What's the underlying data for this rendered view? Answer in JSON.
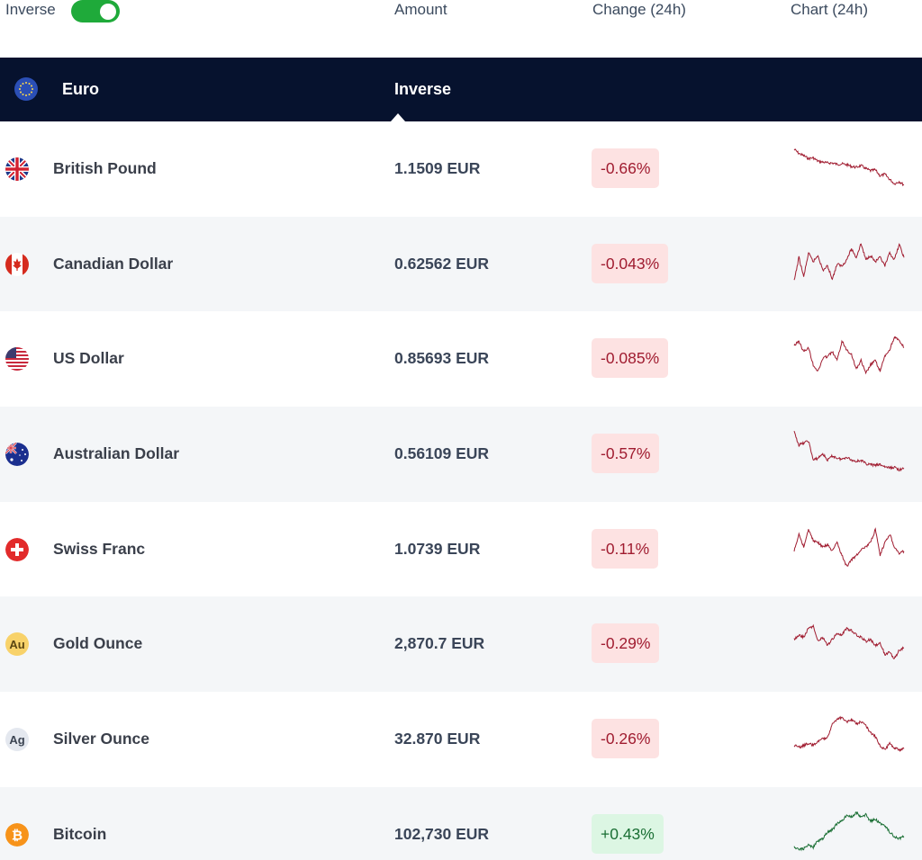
{
  "header": {
    "inverse_label": "Inverse",
    "inverse_toggle_on": true,
    "col_amount": "Amount",
    "col_change": "Change (24h)",
    "col_chart": "Chart (24h)"
  },
  "base": {
    "currency": "Euro",
    "mode": "Inverse"
  },
  "colors": {
    "navy": "#06122e",
    "toggle_green": "#1faa3a",
    "neg_bg": "#fde2e2",
    "neg_text": "#a01c30",
    "pos_bg": "#dcf6e3",
    "pos_text": "#1a6f34",
    "row_alt": "#f4f6f8"
  },
  "rows": [
    {
      "name": "British Pound",
      "icon": "uk-flag-icon",
      "amount": "1.1509 EUR",
      "change": "-0.66%",
      "direction": "down",
      "spark": [
        0.1,
        0.2,
        0.25,
        0.32,
        0.3,
        0.38,
        0.4,
        0.42,
        0.42,
        0.45,
        0.44,
        0.46,
        0.5,
        0.52,
        0.48,
        0.55,
        0.6,
        0.58,
        0.72,
        0.68,
        0.8,
        0.9,
        0.85,
        0.93
      ]
    },
    {
      "name": "Canadian Dollar",
      "icon": "canada-flag-icon",
      "amount": "0.62562 EUR",
      "change": "-0.043%",
      "direction": "down",
      "spark": [
        0.95,
        0.4,
        0.85,
        0.3,
        0.5,
        0.35,
        0.7,
        0.6,
        0.9,
        0.55,
        0.6,
        0.45,
        0.2,
        0.4,
        0.08,
        0.45,
        0.35,
        0.5,
        0.4,
        0.6,
        0.3,
        0.45,
        0.1,
        0.4
      ]
    },
    {
      "name": "US Dollar",
      "icon": "us-flag-icon",
      "amount": "0.85693 EUR",
      "change": "-0.085%",
      "direction": "down",
      "spark": [
        0.25,
        0.15,
        0.4,
        0.3,
        0.7,
        0.85,
        0.55,
        0.5,
        0.4,
        0.6,
        0.15,
        0.35,
        0.45,
        0.8,
        0.6,
        0.9,
        0.7,
        0.6,
        0.85,
        0.5,
        0.35,
        0.05,
        0.15,
        0.3
      ]
    },
    {
      "name": "Australian Dollar",
      "icon": "australia-flag-icon",
      "amount": "0.56109 EUR",
      "change": "-0.57%",
      "direction": "down",
      "spark": [
        0.05,
        0.35,
        0.3,
        0.25,
        0.7,
        0.65,
        0.55,
        0.7,
        0.6,
        0.65,
        0.68,
        0.62,
        0.7,
        0.72,
        0.7,
        0.78,
        0.8,
        0.82,
        0.8,
        0.85,
        0.88,
        0.86,
        0.92,
        0.9
      ]
    },
    {
      "name": "Swiss Franc",
      "icon": "swiss-flag-icon",
      "amount": "1.0739 EUR",
      "change": "-0.11%",
      "direction": "down",
      "spark": [
        0.6,
        0.2,
        0.5,
        0.1,
        0.35,
        0.4,
        0.5,
        0.45,
        0.6,
        0.4,
        0.7,
        0.95,
        0.8,
        0.7,
        0.55,
        0.5,
        0.4,
        0.1,
        0.7,
        0.4,
        0.2,
        0.5,
        0.65,
        0.6
      ]
    },
    {
      "name": "Gold Ounce",
      "icon": "gold-ounce-icon",
      "amount": "2,870.7 EUR",
      "change": "-0.29%",
      "direction": "down",
      "spark": [
        0.45,
        0.35,
        0.4,
        0.2,
        0.15,
        0.5,
        0.4,
        0.6,
        0.45,
        0.3,
        0.35,
        0.2,
        0.25,
        0.35,
        0.4,
        0.5,
        0.45,
        0.6,
        0.55,
        0.8,
        0.75,
        0.9,
        0.7,
        0.65
      ]
    },
    {
      "name": "Silver Ounce",
      "icon": "silver-ounce-icon",
      "amount": "32.870 EUR",
      "change": "-0.26%",
      "direction": "down",
      "spark": [
        0.7,
        0.75,
        0.7,
        0.65,
        0.7,
        0.6,
        0.55,
        0.5,
        0.2,
        0.1,
        0.05,
        0.15,
        0.1,
        0.2,
        0.15,
        0.25,
        0.4,
        0.5,
        0.7,
        0.8,
        0.65,
        0.75,
        0.8,
        0.78
      ]
    },
    {
      "name": "Bitcoin",
      "icon": "bitcoin-icon",
      "amount": "102,730 EUR",
      "change": "+0.43%",
      "direction": "up",
      "spark": [
        0.85,
        0.9,
        0.88,
        0.8,
        0.85,
        0.7,
        0.65,
        0.5,
        0.45,
        0.3,
        0.25,
        0.1,
        0.15,
        0.05,
        0.15,
        0.1,
        0.25,
        0.2,
        0.3,
        0.35,
        0.5,
        0.6,
        0.65,
        0.6
      ]
    }
  ]
}
